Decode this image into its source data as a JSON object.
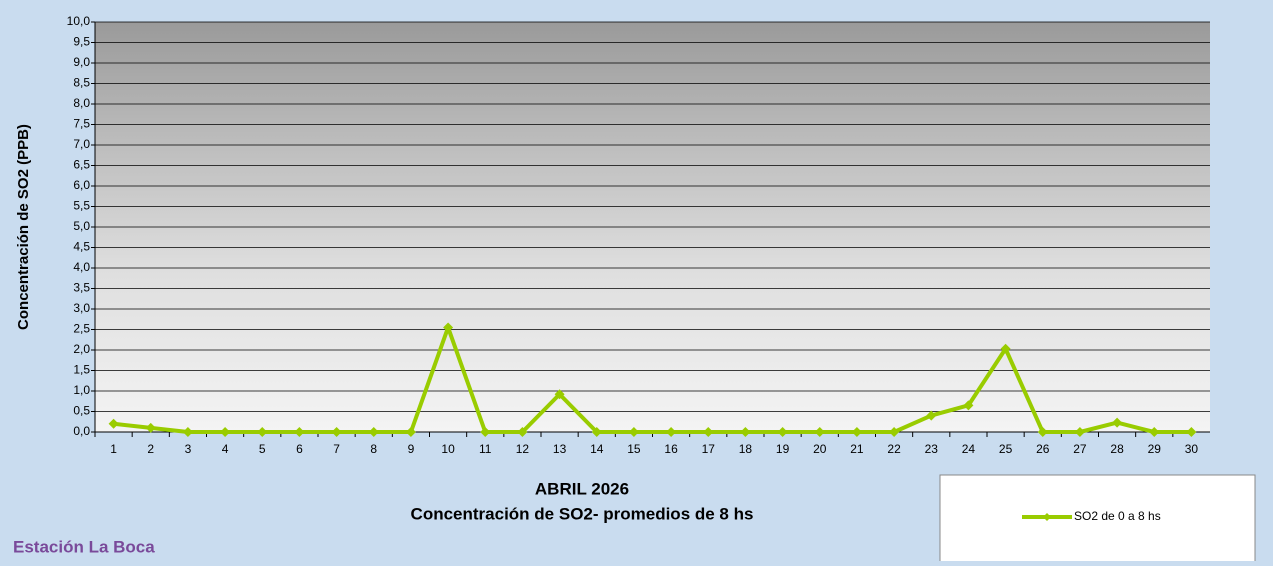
{
  "chart_data": {
    "type": "line",
    "y_label": "Concentración de SO2 (PPB)",
    "x_label": "ABRIL 2026",
    "subtitle": "Concentración de SO2- promedios de 8 hs",
    "station": "Estación La Boca",
    "categories": [
      "1",
      "2",
      "3",
      "4",
      "5",
      "6",
      "7",
      "8",
      "9",
      "10",
      "11",
      "12",
      "13",
      "14",
      "15",
      "16",
      "17",
      "18",
      "19",
      "20",
      "21",
      "22",
      "23",
      "24",
      "25",
      "26",
      "27",
      "28",
      "29",
      "30"
    ],
    "series": [
      {
        "name": "SO2 de 0 a 8 hs",
        "color": "#99cc00",
        "values": [
          0.2,
          0.1,
          0,
          0,
          0,
          0,
          0,
          0,
          0,
          2.55,
          0,
          0,
          0.92,
          0,
          0,
          0,
          0,
          0,
          0,
          0,
          0,
          0,
          0.4,
          0.65,
          2.03,
          0,
          0,
          0.23,
          0,
          0
        ]
      }
    ],
    "ylim": [
      0,
      10
    ],
    "yticks": [
      {
        "value": 0,
        "label": "0,0"
      },
      {
        "value": 0.5,
        "label": "0,5"
      },
      {
        "value": 1,
        "label": "1,0"
      },
      {
        "value": 1.5,
        "label": "1,5"
      },
      {
        "value": 2,
        "label": "2,0"
      },
      {
        "value": 2.5,
        "label": "2,5"
      },
      {
        "value": 3,
        "label": "3,0"
      },
      {
        "value": 3.5,
        "label": "3,5"
      },
      {
        "value": 4,
        "label": "4,0"
      },
      {
        "value": 4.5,
        "label": "4,5"
      },
      {
        "value": 5,
        "label": "5,0"
      },
      {
        "value": 5.5,
        "label": "5,5"
      },
      {
        "value": 6,
        "label": "6,0"
      },
      {
        "value": 6.5,
        "label": "6,5"
      },
      {
        "value": 7,
        "label": "7,0"
      },
      {
        "value": 7.5,
        "label": "7,5"
      },
      {
        "value": 8,
        "label": "8,0"
      },
      {
        "value": 8.5,
        "label": "8,5"
      },
      {
        "value": 9,
        "label": "9,0"
      },
      {
        "value": 9.5,
        "label": "9,5"
      },
      {
        "value": 10,
        "label": "10,0"
      }
    ],
    "grid": true
  }
}
